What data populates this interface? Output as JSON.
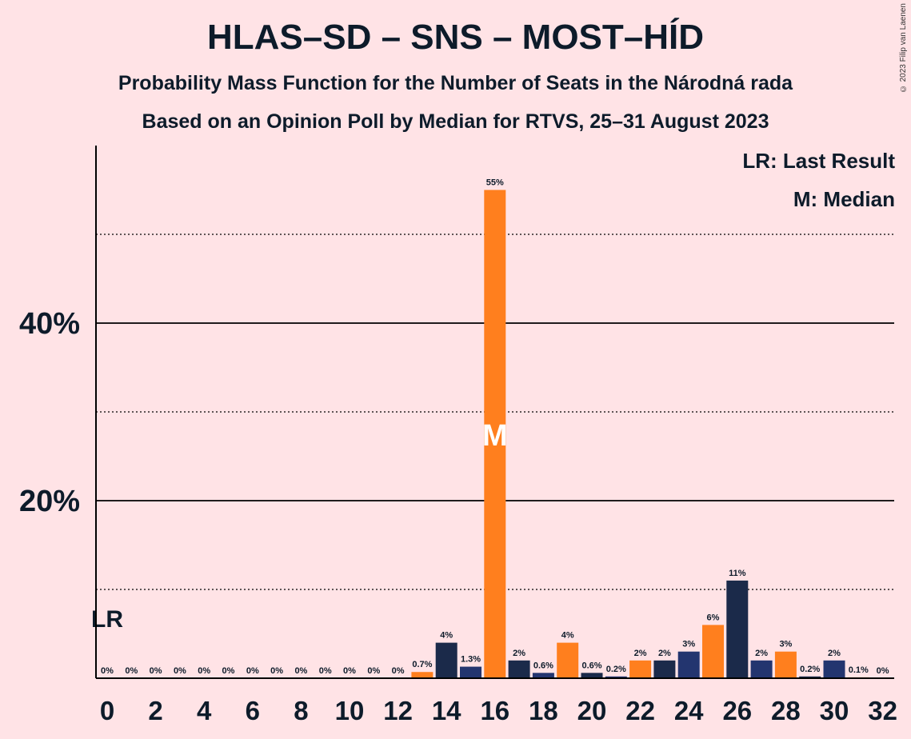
{
  "title": "HLAS–SD – SNS – MOST–HÍD",
  "subtitle1": "Probability Mass Function for the Number of Seats in the Národná rada",
  "subtitle2": "Based on an Opinion Poll by Median for RTVS, 25–31 August 2023",
  "legend": {
    "lr": "LR: Last Result",
    "m": "M: Median"
  },
  "copyright": "© 2023 Filip van Laenen",
  "colors": {
    "background": "#FFE3E6",
    "dark_blue": "#23356F",
    "orange": "#FF7F1E",
    "navy": "#1B2A4A"
  },
  "chart_data": {
    "type": "bar",
    "x": [
      0,
      1,
      2,
      3,
      4,
      5,
      6,
      7,
      8,
      9,
      10,
      11,
      12,
      13,
      14,
      15,
      16,
      17,
      18,
      19,
      20,
      21,
      22,
      23,
      24,
      25,
      26,
      27,
      28,
      29,
      30,
      31,
      32
    ],
    "values": [
      0,
      0,
      0,
      0,
      0,
      0,
      0,
      0,
      0,
      0,
      0,
      0,
      0,
      0.7,
      4,
      1.3,
      55,
      2,
      0.6,
      4,
      0.6,
      0.2,
      2,
      2,
      3,
      6,
      11,
      2,
      3,
      0.2,
      2,
      0.1,
      0
    ],
    "labels": [
      "0%",
      "0%",
      "0%",
      "0%",
      "0%",
      "0%",
      "0%",
      "0%",
      "0%",
      "0%",
      "0%",
      "0%",
      "0%",
      "0.7%",
      "4%",
      "1.3%",
      "55%",
      "2%",
      "0.6%",
      "4%",
      "0.6%",
      "0.2%",
      "2%",
      "2%",
      "3%",
      "6%",
      "11%",
      "2%",
      "3%",
      "0.2%",
      "2%",
      "0.1%",
      "0%"
    ],
    "x_tick_labels": [
      "0",
      "2",
      "4",
      "6",
      "8",
      "10",
      "12",
      "14",
      "16",
      "18",
      "20",
      "22",
      "24",
      "26",
      "28",
      "30",
      "32"
    ],
    "y_tick_labels": [
      "20%",
      "40%"
    ],
    "ylim": [
      0,
      58
    ],
    "solid_gridlines": [
      20,
      40
    ],
    "dotted_gridlines": [
      10,
      30,
      50
    ],
    "last_result_seat": 0,
    "last_result_label": "LR",
    "median_seat": 16,
    "median_label": "M",
    "series_colors": [
      "#23356F",
      "#FF7F1E",
      "#1B2A4A"
    ]
  }
}
